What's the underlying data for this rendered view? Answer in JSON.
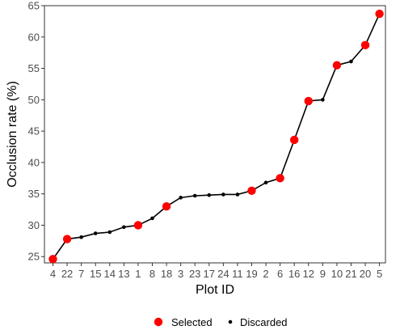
{
  "chart_data": {
    "type": "scatter",
    "title": "",
    "xlabel": "Plot ID",
    "ylabel": "Occlusion rate (%)",
    "ylim": [
      24,
      65
    ],
    "yticks": [
      25,
      30,
      35,
      40,
      45,
      50,
      55,
      60,
      65
    ],
    "grid": false,
    "legend_position": "bottom",
    "categories": [
      "4",
      "22",
      "7",
      "15",
      "14",
      "13",
      "1",
      "8",
      "18",
      "3",
      "23",
      "17",
      "24",
      "11",
      "19",
      "2",
      "6",
      "16",
      "12",
      "9",
      "10",
      "21",
      "20",
      "5"
    ],
    "values": [
      24.6,
      27.8,
      28.1,
      28.7,
      28.9,
      29.7,
      30.0,
      31.1,
      33.0,
      34.4,
      34.7,
      34.8,
      34.9,
      34.9,
      35.5,
      36.8,
      37.5,
      43.6,
      49.8,
      50.0,
      55.5,
      56.1,
      58.7,
      63.7
    ],
    "status": [
      "Selected",
      "Selected",
      "Discarded",
      "Discarded",
      "Discarded",
      "Discarded",
      "Selected",
      "Discarded",
      "Selected",
      "Discarded",
      "Discarded",
      "Discarded",
      "Discarded",
      "Discarded",
      "Selected",
      "Discarded",
      "Selected",
      "Selected",
      "Selected",
      "Discarded",
      "Selected",
      "Discarded",
      "Selected",
      "Selected"
    ],
    "series": [
      {
        "name": "Selected",
        "color": "#ff0000",
        "marker": "large-dot"
      },
      {
        "name": "Discarded",
        "color": "#000000",
        "marker": "small-dot"
      }
    ],
    "line_color": "#000000"
  }
}
